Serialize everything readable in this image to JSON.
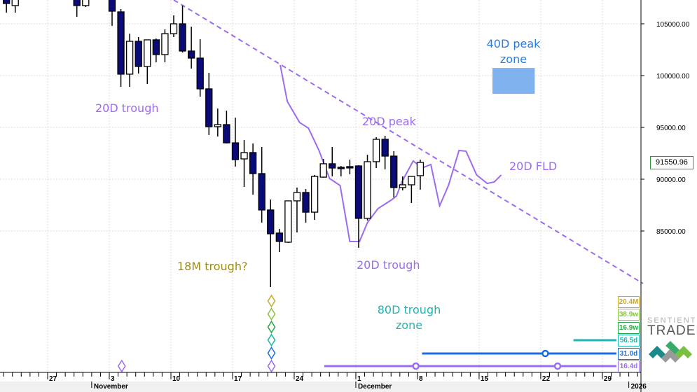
{
  "chart_data": {
    "type": "candlestick",
    "price_axis": {
      "ticks": [
        85000,
        90000,
        95000,
        100000,
        105000
      ],
      "format_decimals": 2
    },
    "time_axis": {
      "reference_date": "2025-11-03",
      "ticks": [
        {
          "date": "2025-10-27",
          "label": "27"
        },
        {
          "date": "2025-11-03",
          "label": "3"
        },
        {
          "date": "2025-11-10",
          "label": "10"
        },
        {
          "date": "2025-11-17",
          "label": "17"
        },
        {
          "date": "2025-11-24",
          "label": "24"
        },
        {
          "date": "2025-12-01",
          "label": "1"
        },
        {
          "date": "2025-12-08",
          "label": "8"
        },
        {
          "date": "2025-12-15",
          "label": "15"
        },
        {
          "date": "2025-12-22",
          "label": "22"
        },
        {
          "date": "2025-12-29",
          "label": "29"
        }
      ],
      "months": [
        {
          "date": "2025-11-01",
          "label": "November"
        },
        {
          "date": "2025-12-01",
          "label": "December"
        },
        {
          "date": "2026-01-01",
          "label": "2026"
        }
      ]
    },
    "candles": [
      {
        "date": "2025-10-22",
        "o": 107570,
        "h": 107840,
        "l": 106080,
        "c": 106960
      },
      {
        "date": "2025-10-23",
        "o": 106760,
        "h": 107840,
        "l": 106080,
        "c": 107570
      },
      {
        "date": "2025-10-30",
        "o": 107570,
        "h": 107840,
        "l": 105680,
        "c": 106760
      },
      {
        "date": "2025-10-31",
        "o": 106760,
        "h": 107700,
        "l": 106620,
        "c": 107430
      },
      {
        "date": "2025-11-03",
        "o": 107570,
        "h": 107840,
        "l": 104800,
        "c": 106220
      },
      {
        "date": "2025-11-04",
        "o": 106150,
        "h": 106420,
        "l": 98920,
        "c": 100140
      },
      {
        "date": "2025-11-05",
        "o": 100140,
        "h": 104050,
        "l": 98920,
        "c": 103310
      },
      {
        "date": "2025-11-06",
        "o": 103310,
        "h": 103720,
        "l": 100200,
        "c": 100880
      },
      {
        "date": "2025-11-07",
        "o": 100880,
        "h": 103450,
        "l": 99190,
        "c": 103450
      },
      {
        "date": "2025-11-08",
        "o": 103450,
        "h": 103580,
        "l": 101280,
        "c": 102030
      },
      {
        "date": "2025-11-09",
        "o": 102030,
        "h": 104460,
        "l": 101280,
        "c": 104050
      },
      {
        "date": "2025-11-10",
        "o": 104050,
        "h": 105810,
        "l": 103720,
        "c": 105000
      },
      {
        "date": "2025-11-11",
        "o": 105000,
        "h": 106760,
        "l": 102230,
        "c": 102370
      },
      {
        "date": "2025-11-12",
        "o": 102370,
        "h": 104730,
        "l": 100680,
        "c": 101690
      },
      {
        "date": "2025-11-13",
        "o": 101690,
        "h": 103510,
        "l": 97970,
        "c": 98720
      },
      {
        "date": "2025-11-14",
        "o": 98720,
        "h": 100270,
        "l": 94260,
        "c": 95070
      },
      {
        "date": "2025-11-15",
        "o": 95070,
        "h": 96820,
        "l": 94120,
        "c": 95270
      },
      {
        "date": "2025-11-16",
        "o": 95270,
        "h": 96620,
        "l": 93450,
        "c": 93510
      },
      {
        "date": "2025-11-17",
        "o": 93510,
        "h": 95950,
        "l": 91220,
        "c": 91890
      },
      {
        "date": "2025-11-18",
        "o": 91960,
        "h": 93780,
        "l": 89260,
        "c": 92570
      },
      {
        "date": "2025-11-19",
        "o": 92570,
        "h": 93450,
        "l": 88510,
        "c": 90540
      },
      {
        "date": "2025-11-20",
        "o": 90540,
        "h": 93110,
        "l": 85810,
        "c": 87030
      },
      {
        "date": "2025-11-21",
        "o": 87030,
        "h": 88040,
        "l": 79590,
        "c": 84730
      },
      {
        "date": "2025-11-22",
        "o": 84800,
        "h": 85200,
        "l": 82970,
        "c": 83990
      },
      {
        "date": "2025-11-23",
        "o": 83920,
        "h": 87910,
        "l": 83850,
        "c": 87910
      },
      {
        "date": "2025-11-24",
        "o": 87910,
        "h": 89190,
        "l": 84860,
        "c": 88720
      },
      {
        "date": "2025-11-25",
        "o": 88720,
        "h": 89050,
        "l": 85810,
        "c": 86820
      },
      {
        "date": "2025-11-26",
        "o": 86820,
        "h": 90410,
        "l": 86080,
        "c": 90270
      },
      {
        "date": "2025-11-27",
        "o": 90200,
        "h": 91960,
        "l": 90140,
        "c": 91490
      },
      {
        "date": "2025-11-28",
        "o": 91490,
        "h": 93110,
        "l": 90270,
        "c": 91080
      },
      {
        "date": "2025-11-29",
        "o": 91150,
        "h": 91280,
        "l": 90270,
        "c": 91080
      },
      {
        "date": "2025-11-30",
        "o": 91220,
        "h": 91890,
        "l": 90470,
        "c": 91150
      },
      {
        "date": "2025-12-01",
        "o": 91280,
        "h": 91350,
        "l": 83380,
        "c": 86220
      },
      {
        "date": "2025-12-02",
        "o": 86220,
        "h": 92360,
        "l": 86010,
        "c": 91690
      },
      {
        "date": "2025-12-03",
        "o": 91690,
        "h": 94050,
        "l": 91080,
        "c": 93850
      },
      {
        "date": "2025-12-04",
        "o": 93850,
        "h": 94190,
        "l": 90950,
        "c": 92230
      },
      {
        "date": "2025-12-05",
        "o": 92230,
        "h": 92700,
        "l": 88240,
        "c": 89190
      },
      {
        "date": "2025-12-06",
        "o": 89190,
        "h": 90270,
        "l": 88920,
        "c": 89460
      },
      {
        "date": "2025-12-07",
        "o": 89460,
        "h": 90270,
        "l": 87700,
        "c": 90270
      },
      {
        "date": "2025-12-08",
        "o": 90340,
        "h": 91890,
        "l": 88990,
        "c": 91620
      }
    ],
    "last_price": "91550.96",
    "trendline": [
      {
        "day": 7.0,
        "price": 107300
      },
      {
        "day": 60.3,
        "price": 79930
      }
    ],
    "fld_projection": [
      [
        19.1,
        101010
      ],
      [
        19.9,
        97500
      ],
      [
        21.3,
        95470
      ],
      [
        22.3,
        94930
      ],
      [
        23.5,
        92770
      ],
      [
        24.7,
        90070
      ],
      [
        25.9,
        89390
      ],
      [
        27.0,
        83990
      ],
      [
        28.1,
        83990
      ],
      [
        29.0,
        85810
      ],
      [
        30.2,
        87160
      ],
      [
        31.8,
        88040
      ],
      [
        32.3,
        88380
      ],
      [
        32.9,
        89730
      ],
      [
        34.2,
        91760
      ],
      [
        35.2,
        91080
      ],
      [
        36.2,
        91420
      ],
      [
        37.2,
        87430
      ],
      [
        38.2,
        89390
      ],
      [
        39.4,
        92770
      ],
      [
        40.2,
        92700
      ],
      [
        41.4,
        90410
      ],
      [
        42.6,
        89590
      ],
      [
        43.4,
        89730
      ],
      [
        44.2,
        90410
      ]
    ],
    "peak_zone_40d": {
      "day_start": 43.2,
      "day_end": 48.0,
      "price_low": 98240,
      "price_high": 100740,
      "color": "#7fb2ee"
    },
    "cycles": [
      {
        "label": "20.4M",
        "color": "#c8a830"
      },
      {
        "label": "38.9w",
        "color": "#86c440"
      },
      {
        "label": "16.9w",
        "color": "#2aa84a"
      },
      {
        "label": "56.5d",
        "color": "#1fb5b0",
        "line_from_day": 52.4
      },
      {
        "label": "31.0d",
        "color": "#1a6fe0",
        "line_from_day": 35.2,
        "markers": [
          49.2
        ]
      },
      {
        "label": "16.4d",
        "color": "#9b6cf0",
        "line_from_day": 24.1,
        "markers": [
          34.5,
          50.6
        ]
      }
    ],
    "trough_diamonds_day": 18.1,
    "extra_diamond_day": 1.1,
    "annotations": {
      "trough_20d_a": "20D trough",
      "peak_20d": "20D peak",
      "fld_20d": "20D FLD",
      "peak_zone_40d_l1": "40D peak",
      "peak_zone_40d_l2": "zone",
      "trough_18m": "18M trough?",
      "trough_20d_b": "20D trough",
      "trough_zone_80d_l1": "80D trough",
      "trough_zone_80d_l2": "zone"
    },
    "colors": {
      "bear": "#0a0a78",
      "bull": "#ffffff",
      "cycle_purple": "#9b6cf0",
      "trough_gold": "#a08a10",
      "teal": "#1fb5b0",
      "blue": "#2a7de0"
    }
  },
  "logo": {
    "line1": "SENTIENT",
    "line2": "TRADER"
  }
}
